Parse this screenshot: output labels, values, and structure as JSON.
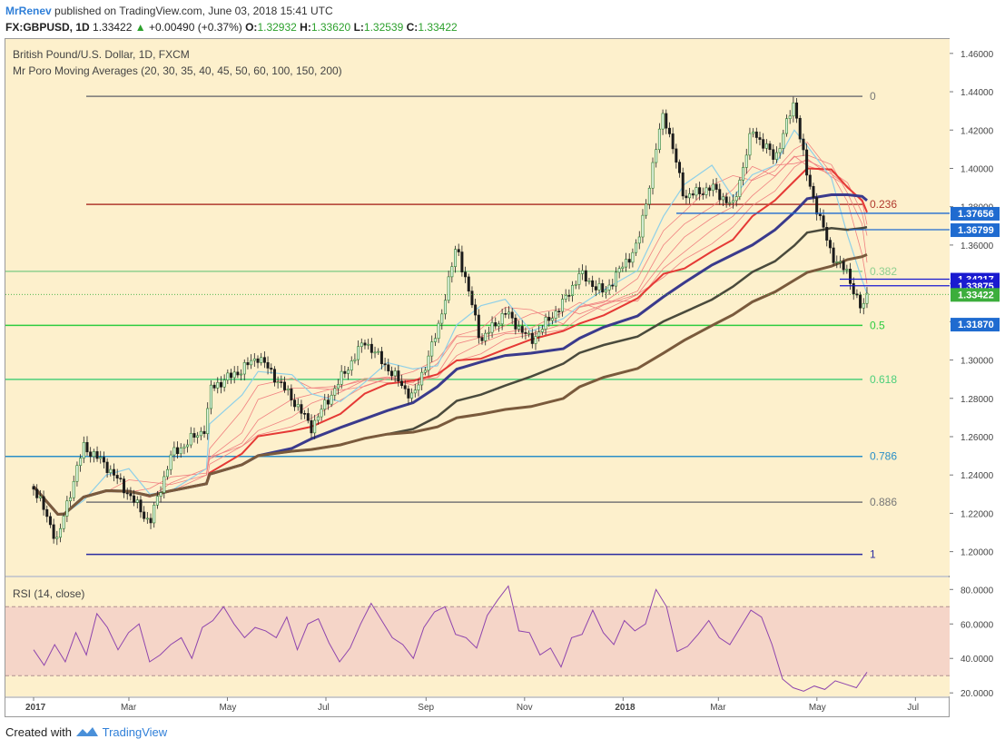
{
  "header": {
    "author": "MrRenev",
    "published": "published on TradingView.com, June 03, 2018 15:41 UTC",
    "symbol": "FX:GBPUSD, 1D",
    "last": "1.33422",
    "change": "+0.00490 (+0.37%)",
    "o_label": "O:",
    "o_value": "1.32932",
    "h_label": "H:",
    "h_value": "1.33620",
    "l_label": "L:",
    "l_value": "1.32539",
    "c_label": "C:",
    "c_value": "1.33422"
  },
  "legend": {
    "title": "British Pound/U.S. Dollar, 1D, FXCM",
    "indicator": "Mr Poro Moving Averages (20, 30, 35, 40, 45, 50, 60, 100, 150, 200)",
    "rsi": "RSI (14, close)"
  },
  "footer": {
    "created_with": "Created with",
    "brand": "TradingView"
  },
  "chart_data": [
    {
      "type": "candlestick",
      "title": "British Pound/U.S. Dollar, 1D, FXCM",
      "ylim": [
        1.1875,
        1.4675
      ],
      "y_ticks": [
        "1.46000",
        "1.44000",
        "1.42000",
        "1.40000",
        "1.38000",
        "1.36000",
        "1.34000",
        "1.32000",
        "1.30000",
        "1.28000",
        "1.26000",
        "1.24000",
        "1.22000",
        "1.20000"
      ],
      "x_ticks": [
        "2017",
        "Mar",
        "May",
        "Jul",
        "Sep",
        "Nov",
        "2018",
        "Mar",
        "May",
        "Jul"
      ],
      "price_path": [
        [
          "2017-01-01",
          1.234
        ],
        [
          "2017-01-16",
          1.205
        ],
        [
          "2017-01-20",
          1.22
        ],
        [
          "2017-02-01",
          1.255
        ],
        [
          "2017-02-15",
          1.245
        ],
        [
          "2017-03-01",
          1.23
        ],
        [
          "2017-03-14",
          1.215
        ],
        [
          "2017-03-27",
          1.25
        ],
        [
          "2017-04-18",
          1.265
        ],
        [
          "2017-04-20",
          1.285
        ],
        [
          "2017-05-10",
          1.295
        ],
        [
          "2017-05-20",
          1.302
        ],
        [
          "2017-06-10",
          1.28
        ],
        [
          "2017-06-22",
          1.265
        ],
        [
          "2017-07-10",
          1.29
        ],
        [
          "2017-07-25",
          1.31
        ],
        [
          "2017-08-08",
          1.296
        ],
        [
          "2017-08-24",
          1.28
        ],
        [
          "2017-09-08",
          1.315
        ],
        [
          "2017-09-20",
          1.36
        ],
        [
          "2017-10-05",
          1.31
        ],
        [
          "2017-10-20",
          1.325
        ],
        [
          "2017-11-05",
          1.31
        ],
        [
          "2017-11-25",
          1.33
        ],
        [
          "2017-12-05",
          1.345
        ],
        [
          "2017-12-20",
          1.335
        ],
        [
          "2018-01-10",
          1.36
        ],
        [
          "2018-01-26",
          1.43
        ],
        [
          "2018-02-08",
          1.385
        ],
        [
          "2018-02-25",
          1.39
        ],
        [
          "2018-03-10",
          1.38
        ],
        [
          "2018-03-22",
          1.42
        ],
        [
          "2018-04-05",
          1.405
        ],
        [
          "2018-04-17",
          1.435
        ],
        [
          "2018-04-25",
          1.395
        ],
        [
          "2018-05-10",
          1.355
        ],
        [
          "2018-05-20",
          1.345
        ],
        [
          "2018-05-29",
          1.325
        ],
        [
          "2018-06-01",
          1.3342
        ]
      ],
      "moving_averages": [
        {
          "name": "MA 100",
          "color": "#3a3a8c"
        },
        {
          "name": "MA 150",
          "color": "#4a4a3c"
        },
        {
          "name": "MA 200",
          "color": "#7a5a3c"
        },
        {
          "name": "MA 20-60",
          "color": "#e53935"
        }
      ],
      "fibonacci": {
        "high": 1.4376,
        "low": 1.1986,
        "levels": [
          {
            "label": "0",
            "price": 1.4376,
            "color": "#777777"
          },
          {
            "label": "0.236",
            "price": 1.3812,
            "color": "#b03a2e"
          },
          {
            "label": "0.382",
            "price": 1.3463,
            "color": "#8fcf8f"
          },
          {
            "label": "0.5",
            "price": 1.3181,
            "color": "#2ecc40"
          },
          {
            "label": "0.618",
            "price": 1.2899,
            "color": "#4ccf7a"
          },
          {
            "label": "0.786",
            "price": 1.2497,
            "color": "#2a8fc8"
          },
          {
            "label": "0.886",
            "price": 1.2258,
            "color": "#777777"
          },
          {
            "label": "1",
            "price": 1.1986,
            "color": "#2a2aa0"
          }
        ]
      },
      "price_labels": [
        {
          "text": "1.37656",
          "price": 1.37656,
          "color": "#1f6bd0"
        },
        {
          "text": "1.36799",
          "price": 1.36799,
          "color": "#1f6bd0"
        },
        {
          "text": "1.34217",
          "price": 1.34217,
          "color": "#1a1ad0"
        },
        {
          "text": "1.33875",
          "price": 1.33875,
          "color": "#1a1ad0"
        },
        {
          "text": "1.33422",
          "price": 1.33422,
          "color": "#3cae3c"
        },
        {
          "text": "1.31870",
          "price": 1.3187,
          "color": "#1f6bd0"
        }
      ]
    },
    {
      "type": "line",
      "title": "RSI (14, close)",
      "ylim": [
        18,
        87
      ],
      "y_ticks": [
        "80.0000",
        "60.0000",
        "40.0000",
        "20.0000"
      ],
      "band": [
        30,
        70
      ],
      "values": [
        45,
        36,
        48,
        38,
        55,
        42,
        66,
        58,
        45,
        55,
        60,
        38,
        42,
        48,
        52,
        40,
        58,
        62,
        70,
        60,
        52,
        58,
        56,
        52,
        64,
        45,
        60,
        63,
        49,
        38,
        46,
        60,
        72,
        62,
        52,
        48,
        40,
        58,
        67,
        70,
        54,
        52,
        46,
        65,
        74,
        82,
        56,
        55,
        42,
        46,
        35,
        52,
        54,
        68,
        55,
        48,
        62,
        56,
        60,
        80,
        70,
        44,
        47,
        54,
        62,
        52,
        48,
        58,
        68,
        64,
        48,
        28,
        23,
        21,
        24,
        22,
        27,
        25,
        23,
        32
      ]
    }
  ]
}
